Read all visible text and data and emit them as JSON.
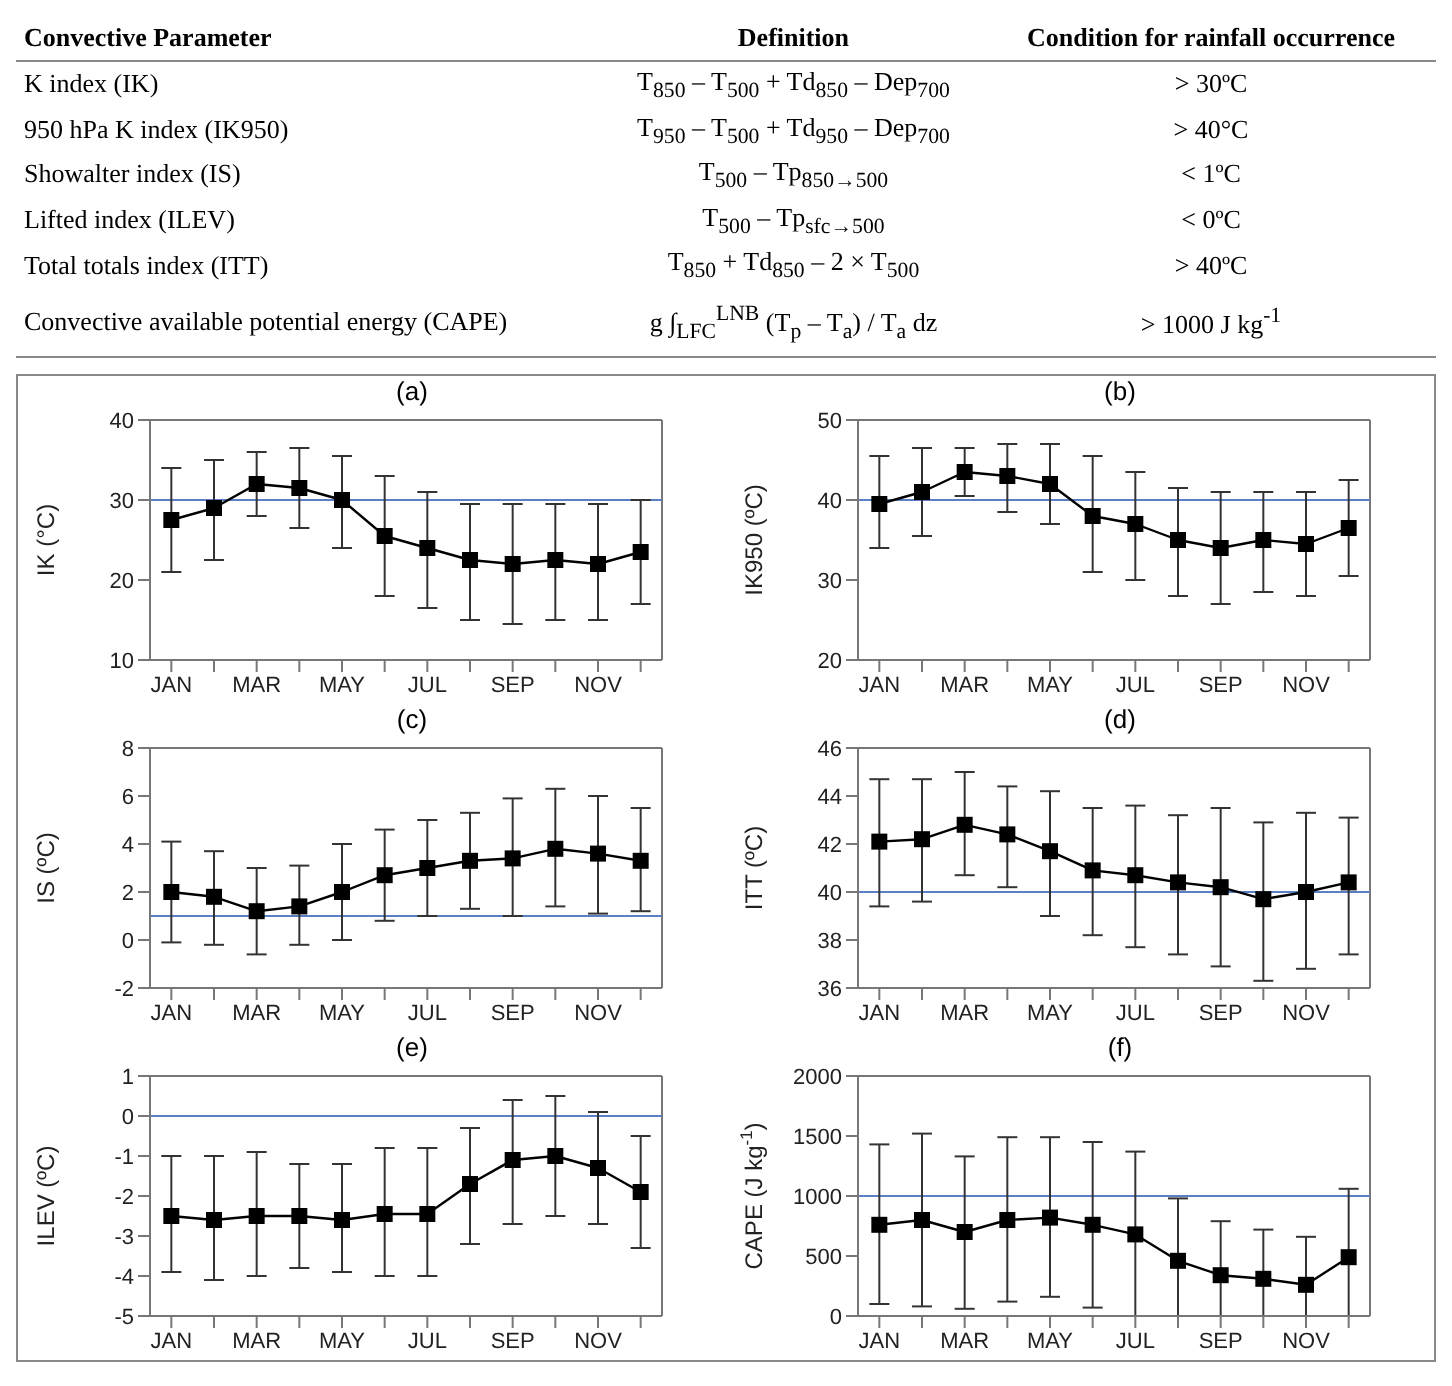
{
  "chart_data": [
    {
      "type": "other",
      "annotations": [
        "Convective Parameter",
        "Definition",
        "Condition for rainfall occurrence",
        "K index (IK)",
        "T$_{850}$ – T$_{500}$ + Td$_{850}$ – Dep$_{700}$",
        "> 30ºC",
        "950 hPa K index (IK950)",
        "T$_{950}$ – T$_{500}$ + Td$_{950}$ – Dep$_{700}$",
        "> 40°C",
        "Showalter index (IS)",
        "T$_{500}$ – Tp$_{850→500}$",
        "< 1ºC",
        "Lifted index (ILEV)",
        "T$_{500}$ – Tp$_{sfc→500}$",
        "< 0ºC",
        "Total totals index (ITT)",
        "T$_{850}$ + Td$_{850}$ – 2 × T$_{500}$",
        "> 40ºC",
        "Convective available potential energy (CAPE)",
        "g ∫$_{LFC}$$^{LNB}$ (T$_{p}$ – T$_{a}$) / T$_{a}$ dz",
        "> 1000 J kg$^{-1}$"
      ]
    },
    {
      "type": "line",
      "title": "(a)",
      "ylabel": "IK (°C)",
      "categories": [
        "JAN",
        null,
        "MAR",
        null,
        "MAY",
        null,
        "JUL",
        null,
        "SEP",
        null,
        "NOV",
        null
      ],
      "color": "#000000",
      "marker": "square",
      "line_style": "solid",
      "ylim": [
        10,
        40
      ],
      "yticks": [
        10,
        20,
        30,
        40
      ],
      "values": [
        27.5,
        29,
        32,
        31.5,
        30,
        25.5,
        24,
        22.5,
        22,
        22.5,
        22,
        23.5
      ],
      "errors": [
        [
          21,
          34
        ],
        [
          22.5,
          35
        ],
        [
          28,
          36
        ],
        [
          26.5,
          36.5
        ],
        [
          24,
          35.5
        ],
        [
          18,
          33
        ],
        [
          16.5,
          31
        ],
        [
          15,
          29.5
        ],
        [
          14.5,
          29.5
        ],
        [
          15,
          29.5
        ],
        [
          15,
          29.5
        ],
        [
          17,
          30
        ]
      ],
      "ref_lines": [
        {
          "axis": "y",
          "value": 30,
          "color": "#5b7fc4"
        }
      ]
    },
    {
      "type": "line",
      "title": "(b)",
      "ylabel": "IK950 (ºC)",
      "categories": [
        "JAN",
        null,
        "MAR",
        null,
        "MAY",
        null,
        "JUL",
        null,
        "SEP",
        null,
        "NOV",
        null
      ],
      "color": "#000000",
      "marker": "square",
      "line_style": "solid",
      "ylim": [
        20,
        50
      ],
      "yticks": [
        20,
        30,
        40,
        50
      ],
      "values": [
        39.5,
        41,
        43.5,
        43,
        42,
        38,
        37,
        35,
        34,
        35,
        34.5,
        36.5
      ],
      "errors": [
        [
          34,
          45.5
        ],
        [
          35.5,
          46.5
        ],
        [
          40.5,
          46.5
        ],
        [
          38.5,
          47
        ],
        [
          37,
          47
        ],
        [
          31,
          45.5
        ],
        [
          30,
          43.5
        ],
        [
          28,
          41.5
        ],
        [
          27,
          41
        ],
        [
          28.5,
          41
        ],
        [
          28,
          41
        ],
        [
          30.5,
          42.5
        ]
      ],
      "ref_lines": [
        {
          "axis": "y",
          "value": 40,
          "color": "#5b7fc4"
        }
      ]
    },
    {
      "type": "line",
      "title": "(c)",
      "ylabel": "IS (ºC)",
      "categories": [
        "JAN",
        null,
        "MAR",
        null,
        "MAY",
        null,
        "JUL",
        null,
        "SEP",
        null,
        "NOV",
        null
      ],
      "color": "#000000",
      "marker": "square",
      "line_style": "solid",
      "ylim": [
        -2,
        8
      ],
      "yticks": [
        -2,
        0,
        2,
        4,
        6,
        8
      ],
      "values": [
        2,
        1.8,
        1.2,
        1.4,
        2,
        2.7,
        3,
        3.3,
        3.4,
        3.8,
        3.6,
        3.3
      ],
      "errors": [
        [
          -0.1,
          4.1
        ],
        [
          -0.2,
          3.7
        ],
        [
          -0.6,
          3
        ],
        [
          -0.2,
          3.1
        ],
        [
          0,
          4
        ],
        [
          0.8,
          4.6
        ],
        [
          1,
          5
        ],
        [
          1.3,
          5.3
        ],
        [
          1,
          5.9
        ],
        [
          1.4,
          6.3
        ],
        [
          1.1,
          6
        ],
        [
          1.2,
          5.5
        ]
      ],
      "ref_lines": [
        {
          "axis": "y",
          "value": 1,
          "color": "#5b7fc4"
        }
      ]
    },
    {
      "type": "line",
      "title": "(d)",
      "ylabel": "ITT (ºC)",
      "categories": [
        "JAN",
        null,
        "MAR",
        null,
        "MAY",
        null,
        "JUL",
        null,
        "SEP",
        null,
        "NOV",
        null
      ],
      "color": "#000000",
      "marker": "square",
      "line_style": "solid",
      "ylim": [
        36,
        46
      ],
      "yticks": [
        36,
        38,
        40,
        42,
        44,
        46
      ],
      "values": [
        42.1,
        42.2,
        42.8,
        42.4,
        41.7,
        40.9,
        40.7,
        40.4,
        40.2,
        39.7,
        40,
        40.4
      ],
      "errors": [
        [
          39.4,
          44.7
        ],
        [
          39.6,
          44.7
        ],
        [
          40.7,
          45
        ],
        [
          40.2,
          44.4
        ],
        [
          39,
          44.2
        ],
        [
          38.2,
          43.5
        ],
        [
          37.7,
          43.6
        ],
        [
          37.4,
          43.2
        ],
        [
          36.9,
          43.5
        ],
        [
          36.3,
          42.9
        ],
        [
          36.8,
          43.3
        ],
        [
          37.4,
          43.1
        ]
      ],
      "ref_lines": [
        {
          "axis": "y",
          "value": 40,
          "color": "#5b7fc4"
        }
      ]
    },
    {
      "type": "line",
      "title": "(e)",
      "ylabel": "ILEV (ºC)",
      "categories": [
        "JAN",
        null,
        "MAR",
        null,
        "MAY",
        null,
        "JUL",
        null,
        "SEP",
        null,
        "NOV",
        null
      ],
      "color": "#000000",
      "marker": "square",
      "line_style": "solid",
      "ylim": [
        -5,
        1
      ],
      "yticks": [
        -5,
        -4,
        -3,
        -2,
        -1,
        0,
        1
      ],
      "values": [
        -2.5,
        -2.6,
        -2.5,
        -2.5,
        -2.6,
        -2.45,
        -2.45,
        -1.7,
        -1.1,
        -1,
        -1.3,
        -1.9
      ],
      "errors": [
        [
          -3.9,
          -1
        ],
        [
          -4.1,
          -1
        ],
        [
          -4,
          -0.9
        ],
        [
          -3.8,
          -1.2
        ],
        [
          -3.9,
          -1.2
        ],
        [
          -4,
          -0.8
        ],
        [
          -4,
          -0.8
        ],
        [
          -3.2,
          -0.3
        ],
        [
          -2.7,
          0.4
        ],
        [
          -2.5,
          0.5
        ],
        [
          -2.7,
          0.1
        ],
        [
          -3.3,
          -0.5
        ]
      ],
      "ref_lines": [
        {
          "axis": "y",
          "value": 0,
          "color": "#5b7fc4"
        }
      ]
    },
    {
      "type": "line",
      "title": "(f)",
      "ylabel": "CAPE (J kg$^{-1}$)",
      "categories": [
        "JAN",
        null,
        "MAR",
        null,
        "MAY",
        null,
        "JUL",
        null,
        "SEP",
        null,
        "NOV",
        null
      ],
      "color": "#000000",
      "marker": "square",
      "line_style": "solid",
      "ylim": [
        0,
        2000
      ],
      "yticks": [
        0,
        500,
        1000,
        1500,
        2000
      ],
      "values": [
        760,
        800,
        700,
        800,
        820,
        760,
        680,
        460,
        340,
        310,
        260,
        490
      ],
      "errors": [
        [
          100,
          1430
        ],
        [
          80,
          1520
        ],
        [
          60,
          1330
        ],
        [
          120,
          1490
        ],
        [
          160,
          1490
        ],
        [
          70,
          1450
        ],
        [
          0,
          1370
        ],
        [
          0,
          980
        ],
        [
          0,
          790
        ],
        [
          0,
          720
        ],
        [
          0,
          660
        ],
        [
          0,
          1060
        ]
      ],
      "ref_lines": [
        {
          "axis": "y",
          "value": 1000,
          "color": "#5b7fc4"
        }
      ]
    }
  ]
}
